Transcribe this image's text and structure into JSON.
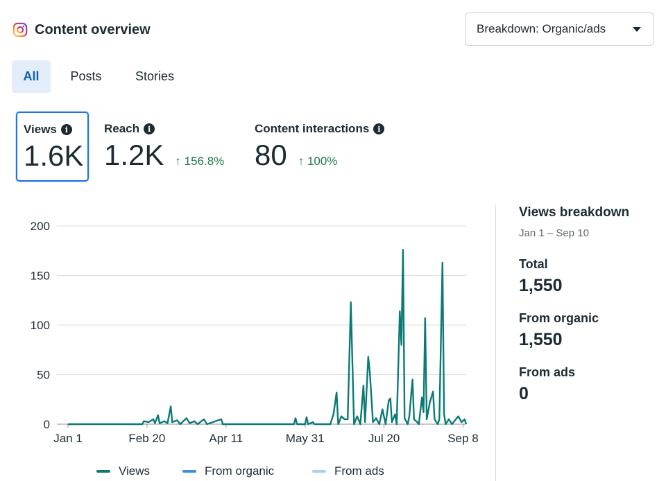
{
  "header": {
    "title": "Content overview",
    "icon": "instagram-icon"
  },
  "breakdown": {
    "label": "Breakdown: Organic/ads"
  },
  "tabs": [
    {
      "label": "All",
      "active": true
    },
    {
      "label": "Posts",
      "active": false
    },
    {
      "label": "Stories",
      "active": false
    }
  ],
  "metrics": {
    "views": {
      "label": "Views",
      "value": "1.6K",
      "selected": true
    },
    "reach": {
      "label": "Reach",
      "value": "1.2K",
      "change": "↑ 156.8%"
    },
    "interactions": {
      "label": "Content interactions",
      "value": "80",
      "change": "↑ 100%"
    }
  },
  "colors": {
    "views": "#0b7a75",
    "organic": "#3e8fd6",
    "ads": "#9dd4f2",
    "accent": "#1b74e4",
    "positive": "#1f7a4a"
  },
  "chart_data": {
    "type": "line",
    "ylim": [
      0,
      200
    ],
    "yticks": [
      0,
      50,
      100,
      150,
      200
    ],
    "xticks": [
      "Jan 1",
      "Feb 20",
      "Apr 11",
      "May 31",
      "Jul 20",
      "Sep 8"
    ],
    "x_start": "Jan 1",
    "x_end": "Sep 10",
    "series": [
      {
        "name": "Views",
        "points": [
          [
            "2025-01-01",
            0
          ],
          [
            "2025-02-17",
            0
          ],
          [
            "2025-02-18",
            3
          ],
          [
            "2025-02-21",
            2
          ],
          [
            "2025-02-24",
            5
          ],
          [
            "2025-02-25",
            1
          ],
          [
            "2025-02-27",
            9
          ],
          [
            "2025-02-28",
            1
          ],
          [
            "2025-03-03",
            3
          ],
          [
            "2025-03-05",
            1
          ],
          [
            "2025-03-07",
            18
          ],
          [
            "2025-03-08",
            2
          ],
          [
            "2025-03-11",
            4
          ],
          [
            "2025-03-13",
            0
          ],
          [
            "2025-03-17",
            6
          ],
          [
            "2025-03-19",
            1
          ],
          [
            "2025-03-22",
            3
          ],
          [
            "2025-03-24",
            0
          ],
          [
            "2025-03-28",
            5
          ],
          [
            "2025-03-30",
            0
          ],
          [
            "2025-04-08",
            5
          ],
          [
            "2025-04-09",
            0
          ],
          [
            "2025-05-24",
            0
          ],
          [
            "2025-05-25",
            6
          ],
          [
            "2025-05-26",
            0
          ],
          [
            "2025-05-31",
            0
          ],
          [
            "2025-06-01",
            7
          ],
          [
            "2025-06-02",
            0
          ],
          [
            "2025-06-05",
            2
          ],
          [
            "2025-06-06",
            0
          ],
          [
            "2025-06-16",
            0
          ],
          [
            "2025-06-18",
            10
          ],
          [
            "2025-06-20",
            32
          ],
          [
            "2025-06-21",
            0
          ],
          [
            "2025-06-23",
            8
          ],
          [
            "2025-06-25",
            5
          ],
          [
            "2025-06-27",
            5
          ],
          [
            "2025-06-29",
            123
          ],
          [
            "2025-07-01",
            0
          ],
          [
            "2025-07-03",
            8
          ],
          [
            "2025-07-05",
            0
          ],
          [
            "2025-07-07",
            39
          ],
          [
            "2025-07-08",
            2
          ],
          [
            "2025-07-10",
            68
          ],
          [
            "2025-07-11",
            52
          ],
          [
            "2025-07-13",
            2
          ],
          [
            "2025-07-15",
            6
          ],
          [
            "2025-07-17",
            0
          ],
          [
            "2025-07-19",
            15
          ],
          [
            "2025-07-21",
            0
          ],
          [
            "2025-07-23",
            24
          ],
          [
            "2025-07-24",
            26
          ],
          [
            "2025-07-25",
            2
          ],
          [
            "2025-07-27",
            10
          ],
          [
            "2025-07-28",
            0
          ],
          [
            "2025-07-30",
            114
          ],
          [
            "2025-07-31",
            80
          ],
          [
            "2025-08-01",
            176
          ],
          [
            "2025-08-02",
            6
          ],
          [
            "2025-08-04",
            0
          ],
          [
            "2025-08-05",
            8
          ],
          [
            "2025-08-07",
            45
          ],
          [
            "2025-08-08",
            5
          ],
          [
            "2025-08-10",
            2
          ],
          [
            "2025-08-11",
            0
          ],
          [
            "2025-08-13",
            27
          ],
          [
            "2025-08-14",
            12
          ],
          [
            "2025-08-15",
            107
          ],
          [
            "2025-08-16",
            5
          ],
          [
            "2025-08-18",
            22
          ],
          [
            "2025-08-20",
            33
          ],
          [
            "2025-08-21",
            5
          ],
          [
            "2025-08-23",
            0
          ],
          [
            "2025-08-24",
            5
          ],
          [
            "2025-08-26",
            163
          ],
          [
            "2025-08-27",
            10
          ],
          [
            "2025-08-28",
            0
          ],
          [
            "2025-08-30",
            5
          ],
          [
            "2025-09-01",
            0
          ],
          [
            "2025-09-03",
            4
          ],
          [
            "2025-09-05",
            8
          ],
          [
            "2025-09-07",
            2
          ],
          [
            "2025-09-09",
            5
          ],
          [
            "2025-09-10",
            0
          ]
        ]
      },
      {
        "name": "From organic",
        "points": []
      },
      {
        "name": "From ads",
        "points": []
      }
    ]
  },
  "legend": [
    {
      "label": "Views",
      "color": "#0b7a75"
    },
    {
      "label": "From organic",
      "color": "#3e8fd6"
    },
    {
      "label": "From ads",
      "color": "#9dd4f2"
    }
  ],
  "side": {
    "title": "Views breakdown",
    "range": "Jan 1 – Sep 10",
    "total_label": "Total",
    "total_value": "1,550",
    "organic_label": "From organic",
    "organic_value": "1,550",
    "ads_label": "From ads",
    "ads_value": "0"
  }
}
